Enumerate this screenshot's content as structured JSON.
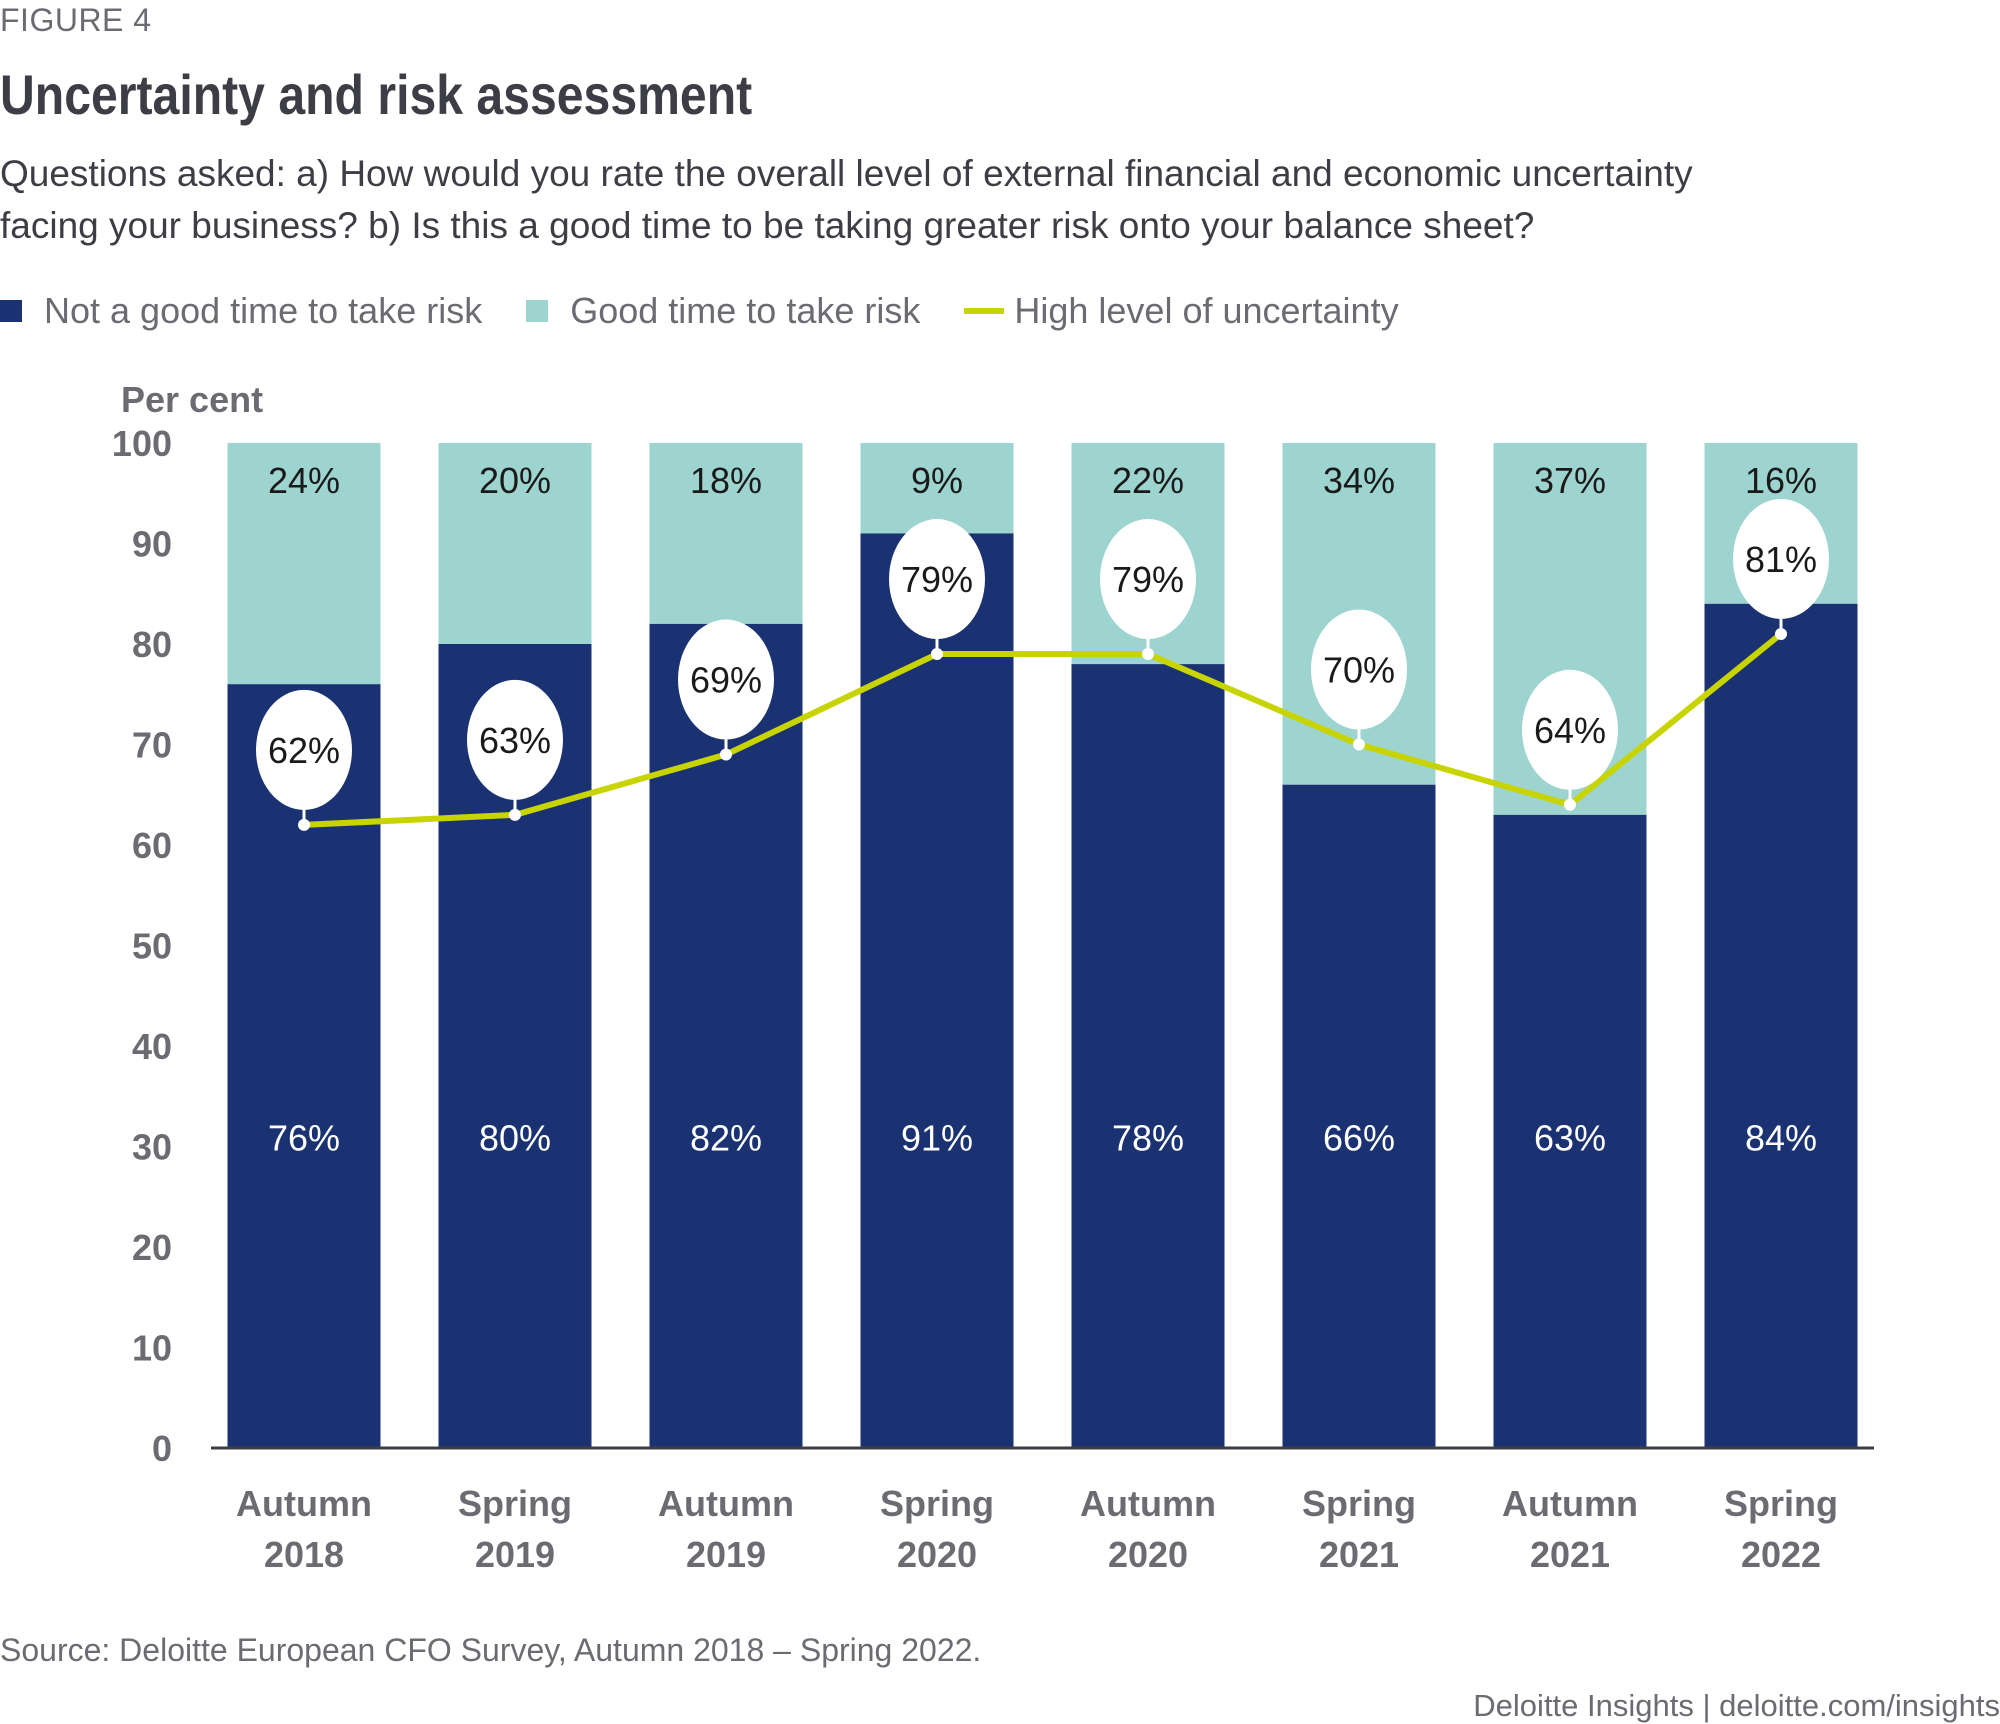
{
  "figure_label": "FIGURE 4",
  "title": "Uncertainty and risk assessment",
  "subtitle_lines": [
    "Questions asked: a) How would you rate the overall level of external financial and economic uncertainty",
    "facing your business? b) Is this a good time to be taking greater risk onto your balance sheet?"
  ],
  "legend": [
    {
      "label": "Not a good time to take risk",
      "color": "#1b3272",
      "kind": "square"
    },
    {
      "label": "Good time to take risk",
      "color": "#9ed4cf",
      "kind": "square"
    },
    {
      "label": "High level of uncertainty",
      "color": "#c8d400",
      "kind": "line"
    }
  ],
  "chart_data": {
    "type": "bar",
    "stacked": true,
    "title": "Uncertainty and risk assessment",
    "ylabel": "Per cent",
    "xlabel": "",
    "ylim": [
      0,
      100
    ],
    "yticks": [
      0,
      10,
      20,
      30,
      40,
      50,
      60,
      70,
      80,
      90,
      100
    ],
    "grid": false,
    "legend_position": "top-left",
    "categories": [
      [
        "Autumn",
        "2018"
      ],
      [
        "Spring",
        "2019"
      ],
      [
        "Autumn",
        "2019"
      ],
      [
        "Spring",
        "2020"
      ],
      [
        "Autumn",
        "2020"
      ],
      [
        "Spring",
        "2021"
      ],
      [
        "Autumn",
        "2021"
      ],
      [
        "Spring",
        "2022"
      ]
    ],
    "series": [
      {
        "name": "Not a good time to take risk",
        "type": "bar",
        "color": "#1b3272",
        "values": [
          76,
          80,
          82,
          91,
          78,
          66,
          63,
          84
        ]
      },
      {
        "name": "Good time to take risk",
        "type": "bar",
        "color": "#9ed4cf",
        "values": [
          24,
          20,
          18,
          9,
          22,
          34,
          37,
          16
        ]
      },
      {
        "name": "High level of uncertainty",
        "type": "line",
        "color": "#c8d400",
        "values": [
          62,
          63,
          69,
          79,
          79,
          70,
          64,
          81
        ]
      }
    ],
    "label_suffix": "%"
  },
  "source": "Source: Deloitte European CFO Survey, Autumn 2018 – Spring 2022.",
  "credit": "Deloitte Insights | deloitte.com/insights"
}
